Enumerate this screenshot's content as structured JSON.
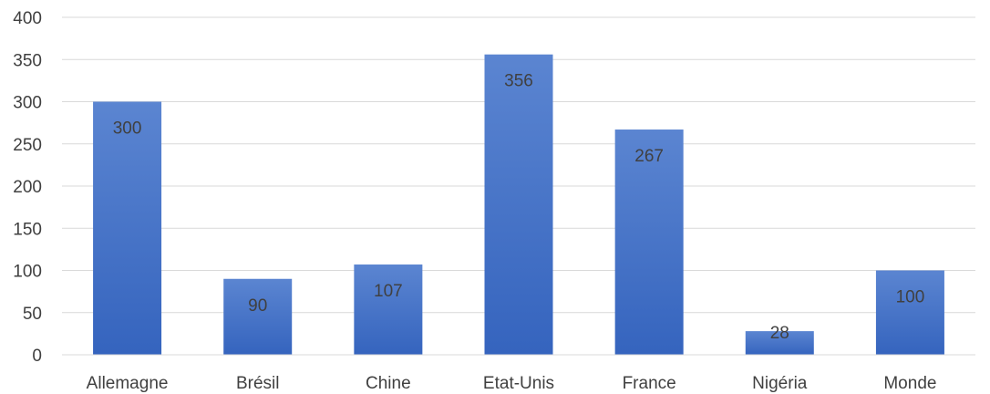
{
  "chart_data": {
    "type": "bar",
    "categories": [
      "Allemagne",
      "Brésil",
      "Chine",
      "Etat-Unis",
      "France",
      "Nigéria",
      "Monde"
    ],
    "values": [
      300,
      90,
      107,
      356,
      267,
      28,
      100
    ],
    "data_labels": [
      "300",
      "90",
      "107",
      "356",
      "267",
      "28",
      "100"
    ],
    "title": "",
    "xlabel": "",
    "ylabel": "",
    "ylim": [
      0,
      400
    ],
    "yticks": [
      0,
      50,
      100,
      150,
      200,
      250,
      300,
      350,
      400
    ],
    "ytick_labels": [
      "0",
      "50",
      "100",
      "150",
      "200",
      "250",
      "300",
      "350",
      "400"
    ],
    "grid": true,
    "legend": "none",
    "bar_color": "#4472c4",
    "bar_color_top": "#5b85d1",
    "bar_color_bottom": "#3564be"
  }
}
